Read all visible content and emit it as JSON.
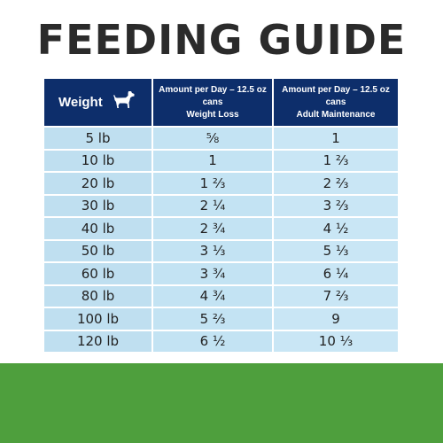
{
  "title": "FEEDING GUIDE",
  "colors": {
    "header_bg": "#0d2e6b",
    "cell_bg": "#c9e6f5",
    "green_bar": "#4e9f3d"
  },
  "table": {
    "header": {
      "weight": "Weight",
      "weight_icon": "dog-icon",
      "weight_loss_line1": "Amount per Day – 12.5 oz cans",
      "weight_loss_line2": "Weight Loss",
      "maintenance_line1": "Amount per Day – 12.5 oz cans",
      "maintenance_line2": "Adult Maintenance"
    },
    "rows": [
      {
        "weight": "5 lb",
        "weight_loss": "⅝",
        "maintenance": "1"
      },
      {
        "weight": "10 lb",
        "weight_loss": "1",
        "maintenance": "1 ⅔"
      },
      {
        "weight": "20 lb",
        "weight_loss": "1 ⅔",
        "maintenance": "2 ⅔"
      },
      {
        "weight": "30 lb",
        "weight_loss": "2 ¼",
        "maintenance": "3 ⅔"
      },
      {
        "weight": "40 lb",
        "weight_loss": "2 ¾",
        "maintenance": "4 ½"
      },
      {
        "weight": "50 lb",
        "weight_loss": "3 ⅓",
        "maintenance": "5 ⅓"
      },
      {
        "weight": "60 lb",
        "weight_loss": "3 ¾",
        "maintenance": "6 ¼"
      },
      {
        "weight": "80 lb",
        "weight_loss": "4 ¾",
        "maintenance": "7 ⅔"
      },
      {
        "weight": "100 lb",
        "weight_loss": "5 ⅔",
        "maintenance": "9"
      },
      {
        "weight": "120 lb",
        "weight_loss": "6 ½",
        "maintenance": "10 ⅓"
      }
    ]
  }
}
